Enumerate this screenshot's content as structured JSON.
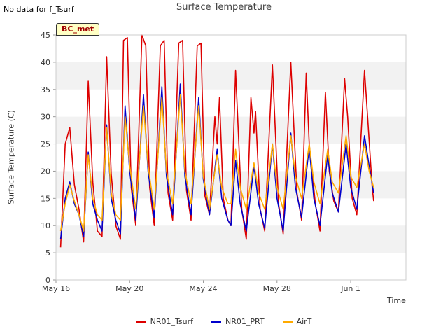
{
  "header": {
    "no_data_note": "No data for f_Tsurf",
    "badge": "BC_met"
  },
  "chart_data": {
    "type": "line",
    "title": "Surface Temperature",
    "xlabel": "Time",
    "ylabel": "Surface Temperature (C)",
    "ylim": [
      0,
      45
    ],
    "yticks": [
      0,
      5,
      10,
      15,
      20,
      25,
      30,
      35,
      40,
      45
    ],
    "xlim": [
      "2023-05-16",
      "2023-06-04"
    ],
    "xticks": [
      {
        "date": "2023-05-16",
        "label": "May 16"
      },
      {
        "date": "2023-05-20",
        "label": "May 20"
      },
      {
        "date": "2023-05-24",
        "label": "May 24"
      },
      {
        "date": "2023-05-28",
        "label": "May 28"
      },
      {
        "date": "2023-06-01",
        "label": "Jun 1"
      }
    ],
    "grid": "alternating horizontal bands",
    "legend_position": "bottom",
    "series": [
      {
        "name": "NR01_Tsurf",
        "color": "#dd0000",
        "points": [
          [
            "2023-05-16 06:00",
            6.0
          ],
          [
            "2023-05-16 12:00",
            25.0
          ],
          [
            "2023-05-16 18:00",
            28.0
          ],
          [
            "2023-05-17 00:00",
            17.5
          ],
          [
            "2023-05-17 06:00",
            13.0
          ],
          [
            "2023-05-17 12:00",
            7.0
          ],
          [
            "2023-05-17 18:00",
            36.5
          ],
          [
            "2023-05-18 00:00",
            18.0
          ],
          [
            "2023-05-18 06:00",
            9.0
          ],
          [
            "2023-05-18 12:00",
            8.0
          ],
          [
            "2023-05-18 18:00",
            41.0
          ],
          [
            "2023-05-19 00:00",
            19.5
          ],
          [
            "2023-05-19 06:00",
            10.0
          ],
          [
            "2023-05-19 12:00",
            7.5
          ],
          [
            "2023-05-19 16:00",
            44.0
          ],
          [
            "2023-05-19 21:00",
            44.5
          ],
          [
            "2023-05-20 02:00",
            17.0
          ],
          [
            "2023-05-20 08:00",
            10.0
          ],
          [
            "2023-05-20 16:00",
            45.0
          ],
          [
            "2023-05-20 21:00",
            43.0
          ],
          [
            "2023-05-21 02:00",
            17.0
          ],
          [
            "2023-05-21 08:00",
            10.0
          ],
          [
            "2023-05-21 16:00",
            43.0
          ],
          [
            "2023-05-21 21:00",
            44.0
          ],
          [
            "2023-05-22 02:00",
            16.0
          ],
          [
            "2023-05-22 08:00",
            11.0
          ],
          [
            "2023-05-22 16:00",
            43.5
          ],
          [
            "2023-05-22 21:00",
            44.0
          ],
          [
            "2023-05-23 02:00",
            16.5
          ],
          [
            "2023-05-23 08:00",
            11.0
          ],
          [
            "2023-05-23 16:00",
            43.0
          ],
          [
            "2023-05-23 21:00",
            43.5
          ],
          [
            "2023-05-24 02:00",
            15.5
          ],
          [
            "2023-05-24 08:00",
            12.0
          ],
          [
            "2023-05-24 15:00",
            30.0
          ],
          [
            "2023-05-24 18:00",
            25.0
          ],
          [
            "2023-05-24 21:00",
            33.5
          ],
          [
            "2023-05-25 02:00",
            15.0
          ],
          [
            "2023-05-25 08:00",
            11.0
          ],
          [
            "2023-05-25 12:00",
            10.0
          ],
          [
            "2023-05-25 18:00",
            38.5
          ],
          [
            "2023-05-26 02:00",
            13.0
          ],
          [
            "2023-05-26 08:00",
            7.5
          ],
          [
            "2023-05-26 14:00",
            33.5
          ],
          [
            "2023-05-26 18:00",
            27.0
          ],
          [
            "2023-05-26 20:00",
            31.0
          ],
          [
            "2023-05-27 02:00",
            13.0
          ],
          [
            "2023-05-27 08:00",
            9.0
          ],
          [
            "2023-05-27 18:00",
            39.5
          ],
          [
            "2023-05-28 02:00",
            14.0
          ],
          [
            "2023-05-28 08:00",
            8.5
          ],
          [
            "2023-05-28 18:00",
            40.0
          ],
          [
            "2023-05-29 02:00",
            16.0
          ],
          [
            "2023-05-29 08:00",
            11.0
          ],
          [
            "2023-05-29 14:00",
            38.0
          ],
          [
            "2023-05-29 18:00",
            25.0
          ],
          [
            "2023-05-30 02:00",
            14.0
          ],
          [
            "2023-05-30 08:00",
            9.0
          ],
          [
            "2023-05-30 15:00",
            34.5
          ],
          [
            "2023-05-30 20:00",
            20.0
          ],
          [
            "2023-05-31 02:00",
            14.5
          ],
          [
            "2023-05-31 08:00",
            12.5
          ],
          [
            "2023-05-31 16:00",
            37.0
          ],
          [
            "2023-05-31 20:00",
            30.0
          ],
          [
            "2023-06-01 02:00",
            15.0
          ],
          [
            "2023-06-01 08:00",
            12.0
          ],
          [
            "2023-06-01 18:00",
            38.5
          ],
          [
            "2023-06-01 22:00",
            30.0
          ],
          [
            "2023-06-02 04:00",
            17.0
          ],
          [
            "2023-06-02 06:00",
            14.5
          ]
        ]
      },
      {
        "name": "NR01_PRT",
        "color": "#0000cc",
        "points": [
          [
            "2023-05-16 06:00",
            7.5
          ],
          [
            "2023-05-16 12:00",
            15.0
          ],
          [
            "2023-05-16 18:00",
            18.0
          ],
          [
            "2023-05-17 00:00",
            14.0
          ],
          [
            "2023-05-17 06:00",
            12.0
          ],
          [
            "2023-05-17 12:00",
            8.0
          ],
          [
            "2023-05-17 18:00",
            23.5
          ],
          [
            "2023-05-18 00:00",
            14.0
          ],
          [
            "2023-05-18 06:00",
            11.0
          ],
          [
            "2023-05-18 12:00",
            9.0
          ],
          [
            "2023-05-18 18:00",
            28.5
          ],
          [
            "2023-05-19 00:00",
            15.0
          ],
          [
            "2023-05-19 06:00",
            11.0
          ],
          [
            "2023-05-19 12:00",
            8.5
          ],
          [
            "2023-05-19 18:00",
            32.0
          ],
          [
            "2023-05-20 00:00",
            20.0
          ],
          [
            "2023-05-20 08:00",
            11.0
          ],
          [
            "2023-05-20 18:00",
            34.0
          ],
          [
            "2023-05-21 00:00",
            20.0
          ],
          [
            "2023-05-21 08:00",
            11.5
          ],
          [
            "2023-05-21 18:00",
            35.5
          ],
          [
            "2023-05-22 00:00",
            19.0
          ],
          [
            "2023-05-22 08:00",
            12.0
          ],
          [
            "2023-05-22 18:00",
            36.0
          ],
          [
            "2023-05-23 00:00",
            19.0
          ],
          [
            "2023-05-23 08:00",
            12.0
          ],
          [
            "2023-05-23 18:00",
            33.5
          ],
          [
            "2023-05-24 00:00",
            18.5
          ],
          [
            "2023-05-24 08:00",
            12.0
          ],
          [
            "2023-05-24 18:00",
            24.0
          ],
          [
            "2023-05-25 00:00",
            15.0
          ],
          [
            "2023-05-25 08:00",
            11.0
          ],
          [
            "2023-05-25 12:00",
            10.0
          ],
          [
            "2023-05-25 18:00",
            22.0
          ],
          [
            "2023-05-26 00:00",
            14.0
          ],
          [
            "2023-05-26 08:00",
            9.0
          ],
          [
            "2023-05-26 18:00",
            21.0
          ],
          [
            "2023-05-27 00:00",
            14.0
          ],
          [
            "2023-05-27 08:00",
            9.5
          ],
          [
            "2023-05-27 18:00",
            25.0
          ],
          [
            "2023-05-28 00:00",
            15.0
          ],
          [
            "2023-05-28 08:00",
            9.0
          ],
          [
            "2023-05-28 18:00",
            27.0
          ],
          [
            "2023-05-29 00:00",
            17.0
          ],
          [
            "2023-05-29 08:00",
            11.5
          ],
          [
            "2023-05-29 18:00",
            24.5
          ],
          [
            "2023-05-30 00:00",
            15.0
          ],
          [
            "2023-05-30 08:00",
            10.0
          ],
          [
            "2023-05-30 18:00",
            23.0
          ],
          [
            "2023-05-31 00:00",
            16.0
          ],
          [
            "2023-05-31 08:00",
            12.5
          ],
          [
            "2023-05-31 18:00",
            25.0
          ],
          [
            "2023-06-01 00:00",
            17.0
          ],
          [
            "2023-06-01 08:00",
            13.0
          ],
          [
            "2023-06-01 18:00",
            26.5
          ],
          [
            "2023-06-02 00:00",
            21.0
          ],
          [
            "2023-06-02 06:00",
            16.0
          ]
        ]
      },
      {
        "name": "AirT",
        "color": "#ffaa00",
        "points": [
          [
            "2023-05-16 06:00",
            9.0
          ],
          [
            "2023-05-16 12:00",
            14.0
          ],
          [
            "2023-05-16 18:00",
            17.5
          ],
          [
            "2023-05-17 00:00",
            14.5
          ],
          [
            "2023-05-17 06:00",
            12.0
          ],
          [
            "2023-05-17 12:00",
            9.0
          ],
          [
            "2023-05-17 18:00",
            23.0
          ],
          [
            "2023-05-18 00:00",
            15.0
          ],
          [
            "2023-05-18 06:00",
            12.0
          ],
          [
            "2023-05-18 12:00",
            11.0
          ],
          [
            "2023-05-18 18:00",
            28.0
          ],
          [
            "2023-05-19 00:00",
            16.0
          ],
          [
            "2023-05-19 06:00",
            12.0
          ],
          [
            "2023-05-19 12:00",
            11.0
          ],
          [
            "2023-05-19 18:00",
            30.0
          ],
          [
            "2023-05-20 00:00",
            21.0
          ],
          [
            "2023-05-20 08:00",
            13.0
          ],
          [
            "2023-05-20 18:00",
            32.0
          ],
          [
            "2023-05-21 00:00",
            21.0
          ],
          [
            "2023-05-21 08:00",
            13.0
          ],
          [
            "2023-05-21 18:00",
            33.5
          ],
          [
            "2023-05-22 00:00",
            20.0
          ],
          [
            "2023-05-22 08:00",
            14.0
          ],
          [
            "2023-05-22 18:00",
            34.0
          ],
          [
            "2023-05-23 00:00",
            20.0
          ],
          [
            "2023-05-23 08:00",
            14.0
          ],
          [
            "2023-05-23 18:00",
            32.0
          ],
          [
            "2023-05-24 00:00",
            19.0
          ],
          [
            "2023-05-24 08:00",
            13.0
          ],
          [
            "2023-05-24 18:00",
            23.0
          ],
          [
            "2023-05-25 00:00",
            17.0
          ],
          [
            "2023-05-25 08:00",
            14.0
          ],
          [
            "2023-05-25 12:00",
            14.0
          ],
          [
            "2023-05-25 18:00",
            24.0
          ],
          [
            "2023-05-26 00:00",
            17.0
          ],
          [
            "2023-05-26 08:00",
            13.0
          ],
          [
            "2023-05-26 18:00",
            21.5
          ],
          [
            "2023-05-27 00:00",
            16.0
          ],
          [
            "2023-05-27 08:00",
            13.0
          ],
          [
            "2023-05-27 18:00",
            25.0
          ],
          [
            "2023-05-28 00:00",
            17.0
          ],
          [
            "2023-05-28 08:00",
            13.0
          ],
          [
            "2023-05-28 18:00",
            26.5
          ],
          [
            "2023-05-29 00:00",
            19.0
          ],
          [
            "2023-05-29 08:00",
            15.0
          ],
          [
            "2023-05-29 18:00",
            25.0
          ],
          [
            "2023-05-30 00:00",
            18.0
          ],
          [
            "2023-05-30 08:00",
            14.0
          ],
          [
            "2023-05-30 18:00",
            24.0
          ],
          [
            "2023-05-31 00:00",
            18.0
          ],
          [
            "2023-05-31 08:00",
            16.0
          ],
          [
            "2023-05-31 18:00",
            26.5
          ],
          [
            "2023-06-01 00:00",
            19.0
          ],
          [
            "2023-06-01 08:00",
            17.0
          ],
          [
            "2023-06-01 18:00",
            25.0
          ],
          [
            "2023-06-02 00:00",
            20.0
          ],
          [
            "2023-06-02 06:00",
            17.0
          ]
        ]
      }
    ]
  }
}
